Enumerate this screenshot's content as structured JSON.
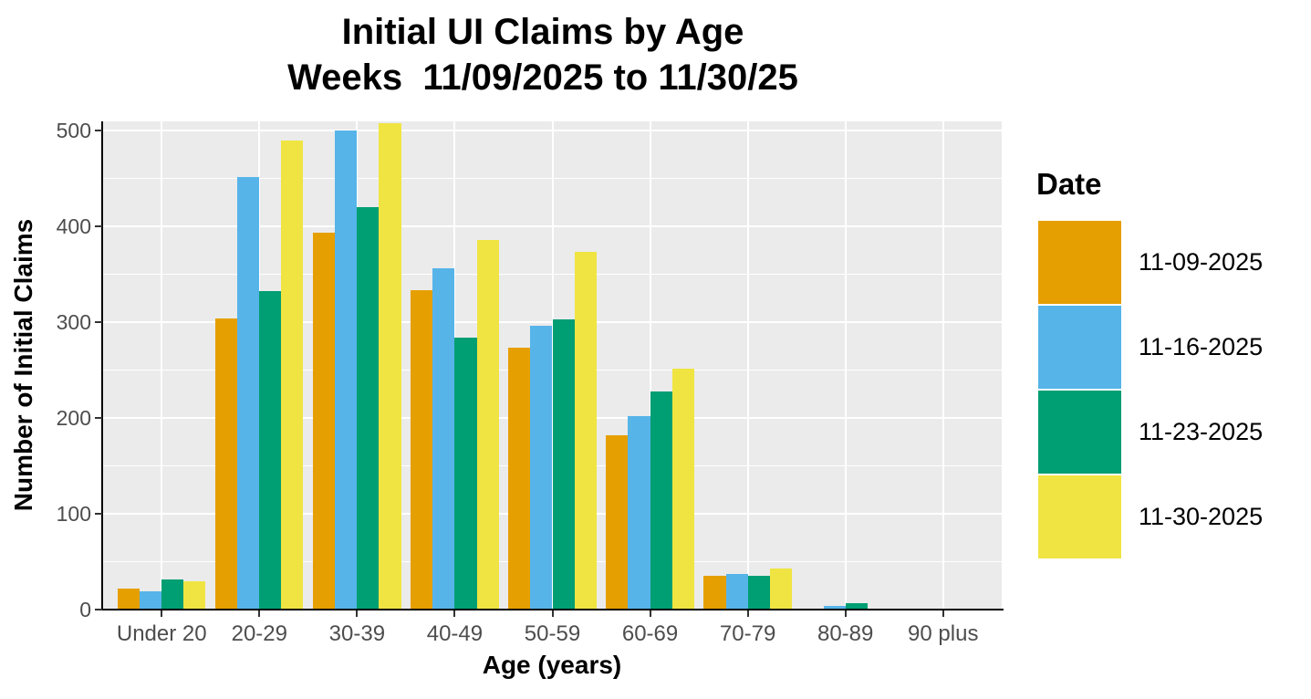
{
  "title": "Initial UI Claims by Age",
  "subtitle": "Weeks  11/09/2025 to 11/30/25",
  "chart_data": {
    "type": "bar",
    "grouped": true,
    "title": "Initial UI Claims by Age",
    "subtitle": "Weeks  11/09/2025 to 11/30/25",
    "xlabel": "Age (years)",
    "ylabel": "Number of Initial Claims",
    "categories": [
      "Under 20",
      "20-29",
      "30-39",
      "40-49",
      "50-59",
      "60-69",
      "70-79",
      "80-89",
      "90 plus"
    ],
    "series": [
      {
        "name": "11-09-2025",
        "color": "#E69F00",
        "values": [
          22,
          304,
          394,
          334,
          274,
          182,
          35,
          1,
          0
        ]
      },
      {
        "name": "11-16-2025",
        "color": "#56B4E9",
        "values": [
          19,
          452,
          500,
          357,
          296,
          202,
          37,
          4,
          0
        ]
      },
      {
        "name": "11-23-2025",
        "color": "#009E73",
        "values": [
          31,
          333,
          420,
          284,
          303,
          228,
          35,
          7,
          0
        ]
      },
      {
        "name": "11-30-2025",
        "color": "#F0E442",
        "values": [
          30,
          490,
          508,
          386,
          374,
          252,
          43,
          1,
          1
        ]
      }
    ],
    "y_ticks": [
      0,
      100,
      200,
      300,
      400,
      500
    ],
    "y_minor_ticks": [
      50,
      150,
      250,
      350,
      450
    ],
    "ylim": [
      0,
      510
    ],
    "legend_title": "Date",
    "legend_position": "right",
    "grid": true,
    "panel_bg": "#EBEBEB",
    "grid_color": "#FFFFFF",
    "axis_color": "#000000",
    "tick_label_color": "#4D4D4D"
  }
}
